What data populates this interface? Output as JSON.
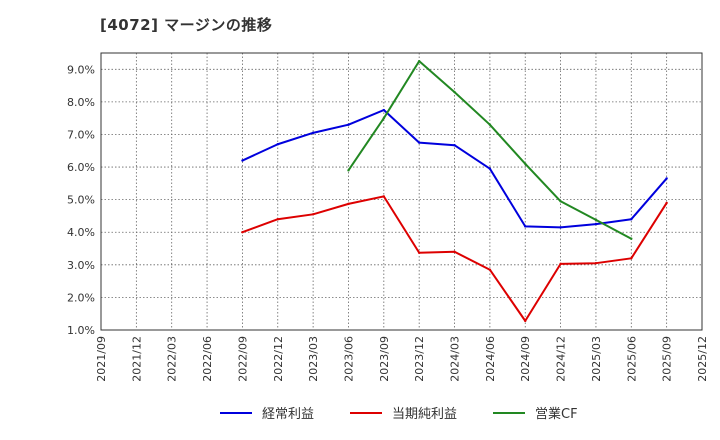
{
  "chart_data": {
    "type": "line",
    "title": "[4072]  マージンの推移",
    "xlabel": "",
    "ylabel": "",
    "ylim": [
      1.0,
      9.5
    ],
    "y_ticks": [
      "1.0%",
      "2.0%",
      "3.0%",
      "4.0%",
      "5.0%",
      "6.0%",
      "7.0%",
      "8.0%",
      "9.0%"
    ],
    "y_tick_values": [
      1,
      2,
      3,
      4,
      5,
      6,
      7,
      8,
      9
    ],
    "categories": [
      "2021/09",
      "2021/12",
      "2022/03",
      "2022/06",
      "2022/09",
      "2022/12",
      "2023/03",
      "2023/06",
      "2023/09",
      "2023/12",
      "2024/03",
      "2024/06",
      "2024/09",
      "2024/12",
      "2025/03",
      "2025/06",
      "2025/09",
      "2025/12"
    ],
    "grid": true,
    "legend_position": "bottom",
    "series": [
      {
        "name": "経常利益",
        "color": "#0000dd",
        "values": [
          null,
          null,
          null,
          null,
          6.2,
          6.7,
          7.05,
          7.3,
          7.75,
          6.75,
          6.67,
          5.95,
          4.18,
          4.15,
          4.25,
          4.4,
          5.65,
          null
        ]
      },
      {
        "name": "当期純利益",
        "color": "#dd0000",
        "values": [
          null,
          null,
          null,
          null,
          4.0,
          4.4,
          4.55,
          4.87,
          5.1,
          3.37,
          3.4,
          2.85,
          1.28,
          3.03,
          3.05,
          3.2,
          4.9,
          null
        ]
      },
      {
        "name": "営業CF",
        "color": "#228822",
        "values": [
          null,
          null,
          null,
          null,
          null,
          null,
          null,
          5.9,
          7.5,
          9.25,
          8.3,
          7.3,
          6.1,
          4.95,
          4.38,
          3.8,
          null,
          null
        ]
      }
    ]
  }
}
